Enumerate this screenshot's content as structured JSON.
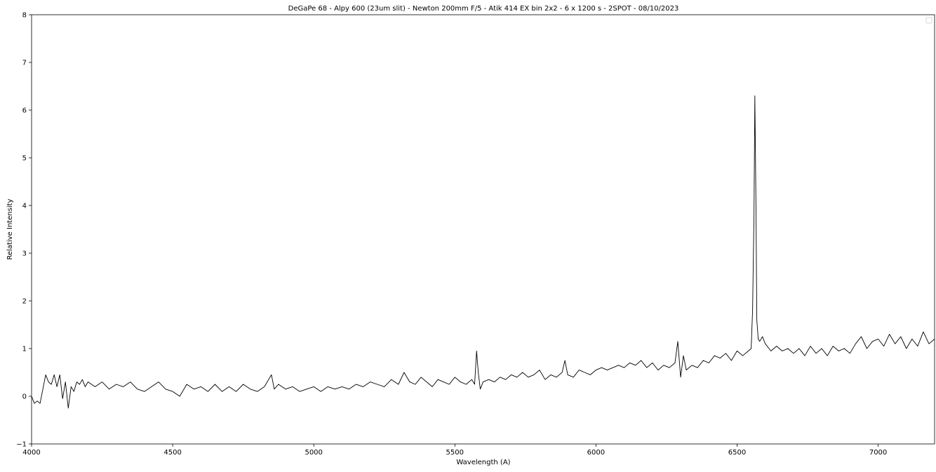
{
  "chart_data": {
    "type": "line",
    "title": "DeGaPe 68 - Alpy 600 (23um slit) - Newton 200mm F/5 - Atik 414 EX bin 2x2 - 6 x 1200 s - 2SPOT - 08/10/2023",
    "xlabel": "Wavelength (A)",
    "ylabel": "Relative Intensity",
    "xlim": [
      4000,
      7200
    ],
    "ylim": [
      -1,
      8
    ],
    "xticks": [
      4000,
      4500,
      5000,
      5500,
      6000,
      6500,
      7000
    ],
    "yticks": [
      -1,
      0,
      1,
      2,
      3,
      4,
      5,
      6,
      7,
      8
    ],
    "grid": false,
    "legend": "top-right, empty",
    "series": [
      {
        "color": "#000000",
        "x": [
          4000,
          4010,
          4020,
          4030,
          4040,
          4050,
          4060,
          4070,
          4080,
          4090,
          4100,
          4110,
          4120,
          4130,
          4140,
          4150,
          4160,
          4170,
          4180,
          4190,
          4200,
          4225,
          4250,
          4275,
          4300,
          4325,
          4350,
          4375,
          4400,
          4425,
          4450,
          4475,
          4500,
          4525,
          4550,
          4575,
          4600,
          4625,
          4650,
          4675,
          4700,
          4725,
          4750,
          4775,
          4800,
          4825,
          4850,
          4860,
          4875,
          4900,
          4925,
          4950,
          4975,
          5000,
          5025,
          5050,
          5075,
          5100,
          5125,
          5150,
          5175,
          5200,
          5225,
          5250,
          5275,
          5300,
          5320,
          5340,
          5360,
          5380,
          5400,
          5420,
          5440,
          5460,
          5480,
          5500,
          5520,
          5540,
          5560,
          5570,
          5577,
          5583,
          5590,
          5600,
          5620,
          5640,
          5660,
          5680,
          5700,
          5720,
          5740,
          5760,
          5780,
          5800,
          5820,
          5840,
          5860,
          5880,
          5890,
          5900,
          5920,
          5940,
          5960,
          5980,
          6000,
          6020,
          6040,
          6060,
          6080,
          6100,
          6120,
          6140,
          6160,
          6180,
          6200,
          6220,
          6240,
          6260,
          6280,
          6290,
          6300,
          6310,
          6320,
          6340,
          6360,
          6380,
          6400,
          6420,
          6440,
          6460,
          6480,
          6500,
          6520,
          6540,
          6550,
          6555,
          6560,
          6563,
          6567,
          6570,
          6575,
          6580,
          6590,
          6600,
          6620,
          6640,
          6660,
          6680,
          6700,
          6720,
          6740,
          6760,
          6780,
          6800,
          6820,
          6840,
          6860,
          6880,
          6900,
          6920,
          6940,
          6960,
          6980,
          7000,
          7020,
          7040,
          7060,
          7080,
          7100,
          7120,
          7140,
          7160,
          7180,
          7200
        ],
        "y": [
          0.0,
          -0.15,
          -0.1,
          -0.15,
          0.15,
          0.45,
          0.3,
          0.25,
          0.45,
          0.2,
          0.45,
          -0.05,
          0.3,
          -0.25,
          0.2,
          0.1,
          0.3,
          0.25,
          0.35,
          0.2,
          0.3,
          0.2,
          0.3,
          0.15,
          0.25,
          0.2,
          0.3,
          0.15,
          0.1,
          0.2,
          0.3,
          0.15,
          0.1,
          0.0,
          0.25,
          0.15,
          0.2,
          0.1,
          0.25,
          0.1,
          0.2,
          0.1,
          0.25,
          0.15,
          0.1,
          0.2,
          0.45,
          0.15,
          0.25,
          0.15,
          0.2,
          0.1,
          0.15,
          0.2,
          0.1,
          0.2,
          0.15,
          0.2,
          0.15,
          0.25,
          0.2,
          0.3,
          0.25,
          0.2,
          0.35,
          0.25,
          0.5,
          0.3,
          0.25,
          0.4,
          0.3,
          0.2,
          0.35,
          0.3,
          0.25,
          0.4,
          0.3,
          0.25,
          0.35,
          0.25,
          0.95,
          0.5,
          0.15,
          0.3,
          0.35,
          0.3,
          0.4,
          0.35,
          0.45,
          0.4,
          0.5,
          0.4,
          0.45,
          0.55,
          0.35,
          0.45,
          0.4,
          0.5,
          0.75,
          0.45,
          0.4,
          0.55,
          0.5,
          0.45,
          0.55,
          0.6,
          0.55,
          0.6,
          0.65,
          0.6,
          0.7,
          0.65,
          0.75,
          0.6,
          0.7,
          0.55,
          0.65,
          0.6,
          0.7,
          1.15,
          0.4,
          0.85,
          0.55,
          0.65,
          0.6,
          0.75,
          0.7,
          0.85,
          0.8,
          0.9,
          0.75,
          0.95,
          0.85,
          0.95,
          1.0,
          1.8,
          3.8,
          6.3,
          4.0,
          1.6,
          1.2,
          1.15,
          1.25,
          1.1,
          0.95,
          1.05,
          0.95,
          1.0,
          0.9,
          1.0,
          0.85,
          1.05,
          0.9,
          1.0,
          0.85,
          1.05,
          0.95,
          1.0,
          0.9,
          1.1,
          1.25,
          1.0,
          1.15,
          1.2,
          1.05,
          1.3,
          1.1,
          1.25,
          1.0,
          1.2,
          1.05,
          1.35,
          1.1,
          1.2
        ]
      }
    ]
  }
}
